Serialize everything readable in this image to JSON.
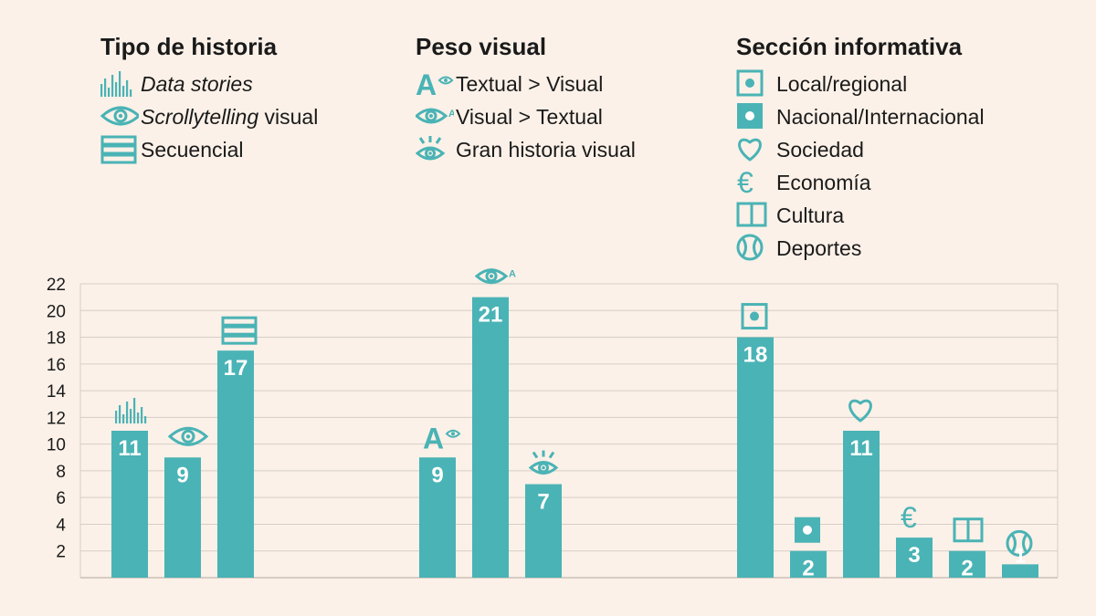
{
  "legend": {
    "tipo": {
      "title": "Tipo de historia",
      "items": [
        {
          "icon": "data-stories-icon",
          "label_italic": "Data stories",
          "label_rest": ""
        },
        {
          "icon": "eye-icon",
          "label_italic": "Scrollytelling",
          "label_rest": " visual"
        },
        {
          "icon": "sequential-icon",
          "label_italic": "",
          "label_rest": "Secuencial"
        }
      ]
    },
    "peso": {
      "title": "Peso visual",
      "items": [
        {
          "icon": "text-over-visual-icon",
          "label": "Textual > Visual"
        },
        {
          "icon": "visual-over-text-icon",
          "label": "Visual > Textual"
        },
        {
          "icon": "big-visual-story-icon",
          "label": "Gran historia visual"
        }
      ]
    },
    "seccion": {
      "title": "Sección informativa",
      "items": [
        {
          "icon": "local-icon",
          "label": "Local/regional"
        },
        {
          "icon": "national-icon",
          "label": "Nacional/Internacional"
        },
        {
          "icon": "heart-icon",
          "label": "Sociedad"
        },
        {
          "icon": "euro-icon",
          "label": "Economía"
        },
        {
          "icon": "book-icon",
          "label": "Cultura"
        },
        {
          "icon": "ball-icon",
          "label": "Deportes"
        }
      ]
    }
  },
  "chart_data": {
    "type": "bar",
    "ylim": [
      0,
      22
    ],
    "yticks": [
      2,
      4,
      6,
      8,
      10,
      12,
      14,
      16,
      18,
      20,
      22
    ],
    "grid": true,
    "bar_color": "#4ab3b5",
    "groups": [
      {
        "name": "Tipo de historia",
        "bars": [
          {
            "category": "Data stories",
            "value": 11,
            "icon": "data-stories-icon"
          },
          {
            "category": "Scrollytelling visual",
            "value": 9,
            "icon": "eye-icon"
          },
          {
            "category": "Secuencial",
            "value": 17,
            "icon": "sequential-icon"
          }
        ]
      },
      {
        "name": "Peso visual",
        "bars": [
          {
            "category": "Textual > Visual",
            "value": 9,
            "icon": "text-over-visual-icon"
          },
          {
            "category": "Visual > Textual",
            "value": 21,
            "icon": "visual-over-text-icon"
          },
          {
            "category": "Gran historia visual",
            "value": 7,
            "icon": "big-visual-story-icon"
          }
        ]
      },
      {
        "name": "Sección informativa",
        "bars": [
          {
            "category": "Local/regional",
            "value": 18,
            "icon": "local-icon"
          },
          {
            "category": "Nacional/Internacional",
            "value": 2,
            "icon": "national-icon"
          },
          {
            "category": "Sociedad",
            "value": 11,
            "icon": "heart-icon"
          },
          {
            "category": "Economía",
            "value": 3,
            "icon": "euro-icon"
          },
          {
            "category": "Cultura",
            "value": 2,
            "icon": "book-icon"
          },
          {
            "category": "Deportes",
            "value": 1,
            "icon": "ball-icon"
          }
        ]
      }
    ]
  }
}
